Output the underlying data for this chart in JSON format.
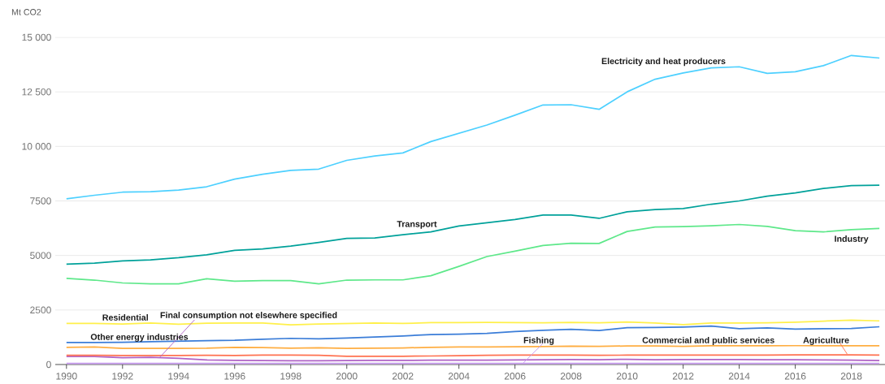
{
  "chart_data": {
    "type": "line",
    "ylabel": "Mt CO2",
    "x": [
      1990,
      1991,
      1992,
      1993,
      1994,
      1995,
      1996,
      1997,
      1998,
      1999,
      2000,
      2001,
      2002,
      2003,
      2004,
      2005,
      2006,
      2007,
      2008,
      2009,
      2010,
      2011,
      2012,
      2013,
      2014,
      2015,
      2016,
      2017,
      2018,
      2019
    ],
    "series": [
      {
        "name": "Electricity and heat producers",
        "color": "#4dd0ff",
        "values": [
          7600,
          7760,
          7900,
          7920,
          8000,
          8150,
          8500,
          8720,
          8900,
          8960,
          9360,
          9560,
          9700,
          10220,
          10600,
          10980,
          11430,
          11900,
          11910,
          11700,
          12500,
          13080,
          13370,
          13600,
          13650,
          13350,
          13420,
          13700,
          14170,
          14050
        ]
      },
      {
        "name": "Transport",
        "color": "#00a19a",
        "values": [
          4600,
          4650,
          4750,
          4800,
          4900,
          5030,
          5230,
          5300,
          5430,
          5600,
          5780,
          5800,
          5950,
          6080,
          6350,
          6500,
          6650,
          6850,
          6850,
          6700,
          7000,
          7100,
          7150,
          7350,
          7500,
          7720,
          7870,
          8070,
          8200,
          8220
        ]
      },
      {
        "name": "Industry",
        "color": "#5ee88a",
        "values": [
          3950,
          3870,
          3740,
          3700,
          3700,
          3930,
          3820,
          3850,
          3850,
          3700,
          3870,
          3880,
          3880,
          4070,
          4500,
          4950,
          5200,
          5460,
          5560,
          5550,
          6100,
          6300,
          6320,
          6360,
          6420,
          6330,
          6140,
          6080,
          6180,
          6240
        ]
      },
      {
        "name": "Residential",
        "color": "#fff04a",
        "values": [
          1880,
          1880,
          1860,
          1900,
          1850,
          1890,
          1900,
          1900,
          1820,
          1860,
          1880,
          1900,
          1880,
          1920,
          1920,
          1930,
          1920,
          1910,
          1930,
          1910,
          1950,
          1900,
          1830,
          1900,
          1900,
          1910,
          1940,
          1990,
          2030,
          2000
        ]
      },
      {
        "name": "Other energy industries",
        "color": "#3b7dd8",
        "values": [
          1010,
          1010,
          1020,
          1050,
          1070,
          1090,
          1110,
          1160,
          1200,
          1180,
          1210,
          1260,
          1310,
          1370,
          1390,
          1430,
          1510,
          1570,
          1610,
          1560,
          1690,
          1700,
          1720,
          1760,
          1640,
          1680,
          1625,
          1640,
          1650,
          1730
        ]
      },
      {
        "name": "Commercial and public services",
        "color": "#ffae42",
        "values": [
          790,
          800,
          740,
          740,
          740,
          750,
          790,
          780,
          750,
          770,
          740,
          750,
          760,
          790,
          800,
          800,
          810,
          820,
          845,
          835,
          850,
          850,
          830,
          860,
          860,
          860,
          865,
          860,
          860,
          860
        ]
      },
      {
        "name": "Agriculture",
        "color": "#ff7150",
        "values": [
          420,
          420,
          410,
          410,
          410,
          420,
          410,
          430,
          430,
          420,
          380,
          380,
          380,
          390,
          400,
          420,
          430,
          430,
          430,
          420,
          430,
          430,
          430,
          430,
          430,
          430,
          440,
          440,
          440,
          430
        ]
      },
      {
        "name": "Final consumption not elsewhere specified",
        "color": "#b063c6",
        "values": [
          370,
          370,
          310,
          330,
          280,
          210,
          190,
          180,
          170,
          170,
          180,
          190,
          190,
          200,
          200,
          200,
          210,
          220,
          230,
          220,
          240,
          220,
          230,
          230,
          230,
          220,
          220,
          210,
          200,
          180
        ]
      },
      {
        "name": "Fishing",
        "color": "#c89af0",
        "values": [
          50,
          50,
          50,
          50,
          50,
          50,
          50,
          50,
          50,
          50,
          50,
          50,
          50,
          50,
          50,
          50,
          50,
          50,
          50,
          50,
          50,
          50,
          50,
          50,
          50,
          50,
          50,
          50,
          50,
          50
        ]
      }
    ],
    "xlim": [
      1989.6,
      2019.2
    ],
    "xticks": [
      1990,
      1992,
      1994,
      1996,
      1998,
      2000,
      2002,
      2004,
      2006,
      2008,
      2010,
      2012,
      2014,
      2016,
      2018
    ],
    "ylim": [
      0,
      15000
    ],
    "yticks": [
      0,
      2500,
      5000,
      7500,
      {
        "value": 10000,
        "label": "10 000"
      },
      {
        "value": 12500,
        "label": "12 500"
      },
      {
        "value": 15000,
        "label": "15 000"
      }
    ],
    "grid": "y"
  }
}
